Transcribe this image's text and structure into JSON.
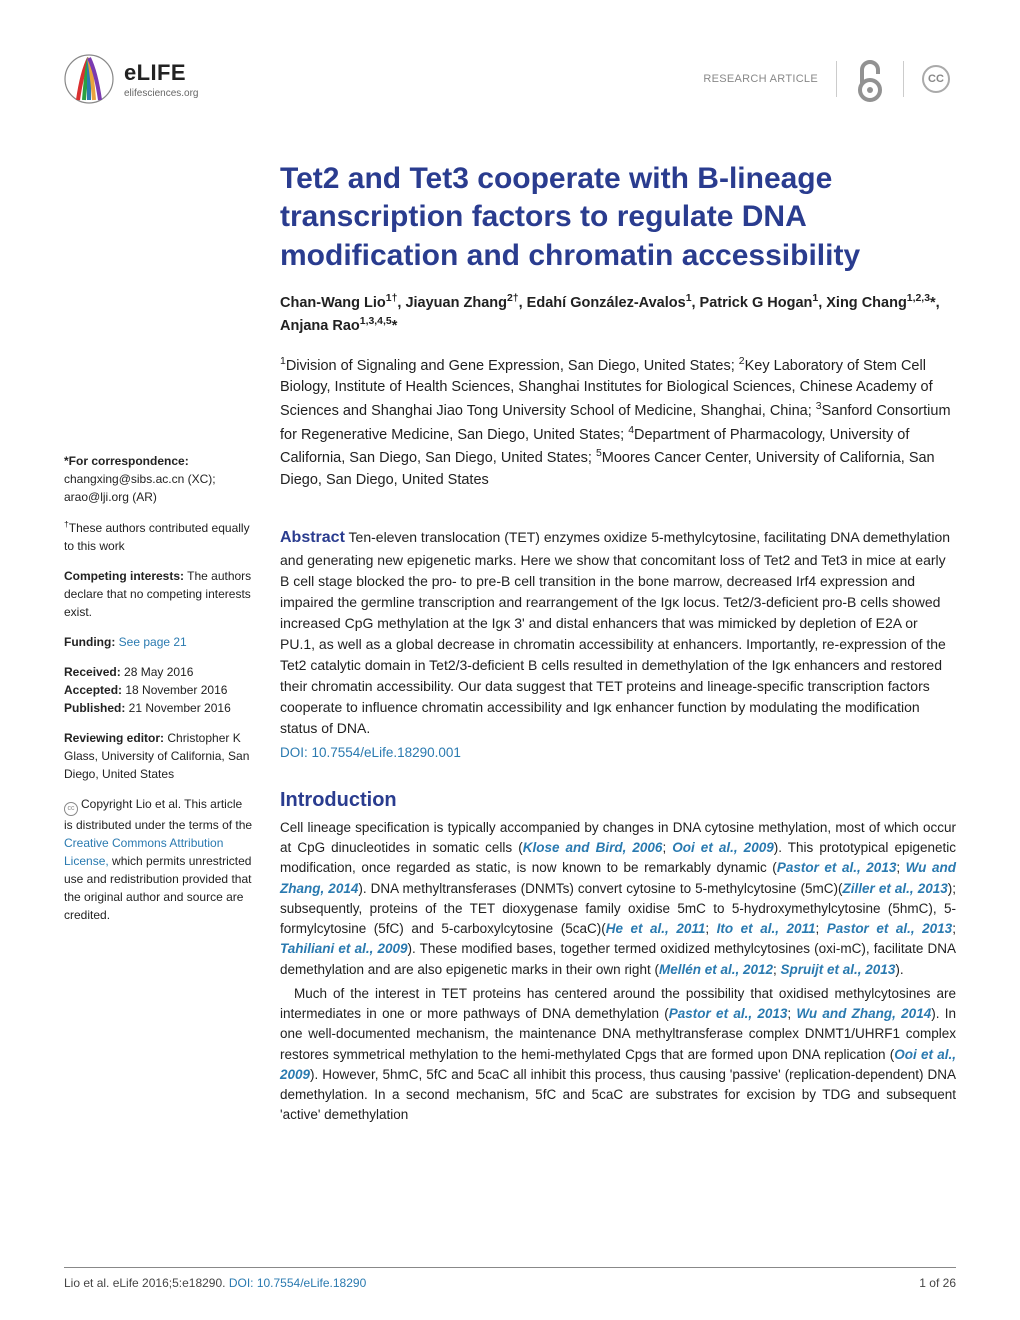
{
  "header": {
    "journal_name": "eLIFE",
    "journal_url": "elifesciences.org",
    "article_type": "RESEARCH ARTICLE",
    "cc_label": "CC",
    "logo_colors": [
      "#d93030",
      "#2aa043",
      "#2a7ab0",
      "#e8a33d",
      "#7a3ab0"
    ],
    "oa_color": "#929292"
  },
  "title": "Tet2 and Tet3 cooperate with B-lineage transcription factors to regulate DNA modification and chromatin accessibility",
  "authors_html": "Chan-Wang Lio<sup>1†</sup>, Jiayuan Zhang<sup>2†</sup>, Edahí González-Avalos<sup>1</sup>, Patrick G Hogan<sup>1</sup>, Xing Chang<sup>1,2,3</sup>*, Anjana Rao<sup>1,3,4,5</sup>*",
  "affiliations": "<sup>1</sup>Division of Signaling and Gene Expression, San Diego, United States; <sup>2</sup>Key Laboratory of Stem Cell Biology, Institute of Health Sciences, Shanghai Institutes for Biological Sciences, Chinese Academy of Sciences and Shanghai Jiao Tong University School of Medicine, Shanghai, China; <sup>3</sup>Sanford Consortium for Regenerative Medicine, San Diego, United States; <sup>4</sup>Department of Pharmacology, University of California, San Diego, San Diego, United States; <sup>5</sup>Moores Cancer Center, University of California, San Diego, San Diego, United States",
  "abstract": {
    "label": "Abstract",
    "text": "Ten-eleven translocation (TET) enzymes oxidize 5-methylcytosine, facilitating DNA demethylation and generating new epigenetic marks. Here we show that concomitant loss of Tet2 and Tet3 in mice at early B cell stage blocked the pro- to pre-B cell transition in the bone marrow, decreased Irf4 expression and impaired the germline transcription and rearrangement of the Igκ locus. Tet2/3-deficient pro-B cells showed increased CpG methylation at the Igκ 3' and distal enhancers that was mimicked by depletion of E2A or PU.1, as well as a global decrease in chromatin accessibility at enhancers. Importantly, re-expression of the Tet2 catalytic domain in Tet2/3-deficient B cells resulted in demethylation of the Igκ enhancers and restored their chromatin accessibility. Our data suggest that TET proteins and lineage-specific transcription factors cooperate to influence chromatin accessibility and Igκ enhancer function by modulating the modification status of DNA.",
    "doi": "DOI: 10.7554/eLife.18290.001"
  },
  "intro": {
    "heading": "Introduction",
    "p1": "Cell lineage specification is typically accompanied by changes in DNA cytosine methylation, most of which occur at CpG dinucleotides in somatic cells (<span class='ref'>Klose and Bird, 2006</span>; <span class='ref'>Ooi et al., 2009</span>). This prototypical epigenetic modification, once regarded as static, is now known to be remarkably dynamic (<span class='ref'>Pastor et al., 2013</span>; <span class='ref'>Wu and Zhang, 2014</span>). DNA methyltransferases (DNMTs) convert cytosine to 5-methylcytosine (5mC)(<span class='ref'>Ziller et al., 2013</span>); subsequently, proteins of the TET dioxygenase family oxidise 5mC to 5-hydroxymethylcytosine (5hmC), 5-formylcytosine (5fC) and 5-carboxylcytosine (5caC)(<span class='ref'>He et al., 2011</span>; <span class='ref'>Ito et al., 2011</span>; <span class='ref'>Pastor et al., 2013</span>; <span class='ref'>Tahiliani et al., 2009</span>). These modified bases, together termed oxidized methylcytosines (oxi-mC), facilitate DNA demethylation and are also epigenetic marks in their own right (<span class='ref'>Mellén et al., 2012</span>; <span class='ref'>Spruijt et al., 2013</span>).",
    "p2": "Much of the interest in TET proteins has centered around the possibility that oxidised methylcytosines are intermediates in one or more pathways of DNA demethylation (<span class='ref'>Pastor et al., 2013</span>; <span class='ref'>Wu and Zhang, 2014</span>). In one well-documented mechanism, the maintenance DNA methyltransferase complex DNMT1/UHRF1 complex restores symmetrical methylation to the hemi-methylated Cpgs that are formed upon DNA replication (<span class='ref'>Ooi et al., 2009</span>). However, 5hmC, 5fC and 5caC all inhibit this process, thus causing 'passive' (replication-dependent) DNA demethylation. In a second mechanism, 5fC and 5caC are substrates for excision by TDG and subsequent 'active' demethylation"
  },
  "sidebar": {
    "corr_label": "*For correspondence:",
    "corr_text": "changxing@sibs.ac.cn (XC); arao@lji.org (AR)",
    "equal": "<sup>†</sup>These authors contributed equally to this work",
    "comp_label": "Competing interests:",
    "comp_text": " The authors declare that no competing interests exist.",
    "fund_label": "Funding:",
    "fund_link": "See page 21",
    "received_label": "Received:",
    "received": " 28 May 2016",
    "accepted_label": "Accepted:",
    "accepted": " 18 November 2016",
    "published_label": "Published:",
    "published": " 21 November 2016",
    "reveditor_label": "Reviewing editor:",
    "reveditor": " Christopher K Glass, University of California, San Diego, United States",
    "copyright_pre": "Copyright Lio et al. This article is distributed under the terms of the ",
    "copyright_link": "Creative Commons Attribution License,",
    "copyright_post": " which permits unrestricted use and redistribution provided that the original author and source are credited."
  },
  "footer": {
    "citation": "Lio et al. eLife 2016;5:e18290. ",
    "doi": "DOI: 10.7554/eLife.18290",
    "page": "1 of 26"
  },
  "colors": {
    "brand": "#2a3c8f",
    "link": "#2a7ab0",
    "text": "#212121",
    "muted": "#888888"
  }
}
